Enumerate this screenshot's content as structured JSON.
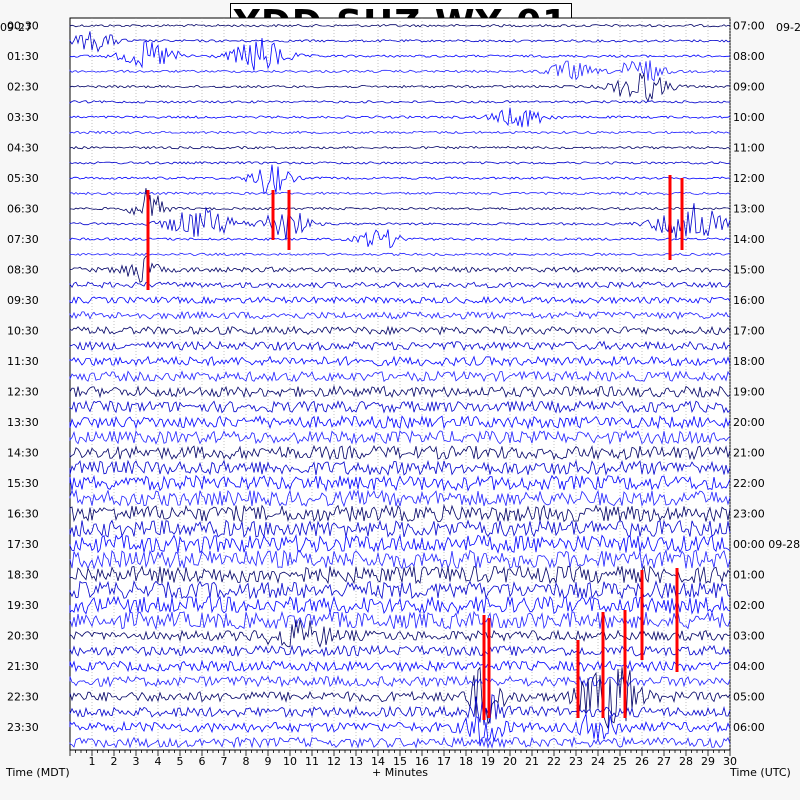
{
  "chart_data": {
    "type": "helicorder",
    "title": "YDD SHZ WY 01",
    "left_date": "09-27",
    "right_date": "09-2",
    "xlabel_left": "Time (MDT)",
    "xlabel_center": "+ Minutes",
    "xlabel_right": "Time (UTC)",
    "x_ticks": [
      1,
      2,
      3,
      4,
      5,
      6,
      7,
      8,
      9,
      10,
      11,
      12,
      13,
      14,
      15,
      16,
      17,
      18,
      19,
      20,
      21,
      22,
      23,
      24,
      25,
      26,
      27,
      28,
      29,
      30
    ],
    "xlim": [
      0,
      30
    ],
    "left_labels": [
      "00:30",
      "01:30",
      "02:30",
      "03:30",
      "04:30",
      "05:30",
      "06:30",
      "07:30",
      "08:30",
      "09:30",
      "10:30",
      "11:30",
      "12:30",
      "13:30",
      "14:30",
      "15:30",
      "16:30",
      "17:30",
      "18:30",
      "19:30",
      "20:30",
      "21:30",
      "22:30",
      "23:30"
    ],
    "right_labels": [
      "07:00",
      "08:00",
      "09:00",
      "10:00",
      "11:00",
      "12:00",
      "13:00",
      "14:00",
      "15:00",
      "16:00",
      "17:00",
      "18:00",
      "19:00",
      "20:00",
      "21:00",
      "22:00",
      "23:00",
      "00:00 09-28",
      "01:00",
      "02:00",
      "03:00",
      "04:00",
      "05:00",
      "06:00"
    ],
    "trace_colors": [
      "#000066",
      "#0000cc",
      "#0000ff",
      "#2020ff"
    ],
    "clip_color": "#ff0000",
    "lines_per_hour": 2,
    "grid": true
  }
}
